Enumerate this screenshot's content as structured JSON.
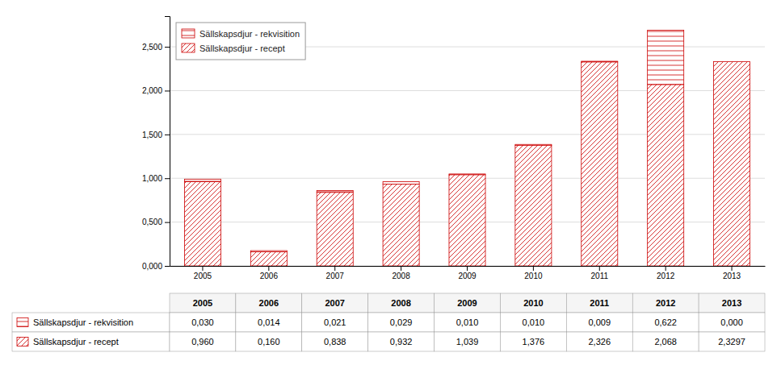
{
  "chart_data": {
    "type": "bar",
    "stacked": true,
    "categories": [
      "2005",
      "2006",
      "2007",
      "2008",
      "2009",
      "2010",
      "2011",
      "2012",
      "2013"
    ],
    "series": [
      {
        "name": "Sällskapsdjur - rekvisition",
        "color": "#cc0000",
        "values": [
          0.03,
          0.014,
          0.021,
          0.029,
          0.01,
          0.01,
          0.009,
          0.622,
          0.0
        ],
        "value_labels": [
          "0,030",
          "0,014",
          "0,021",
          "0,029",
          "0,010",
          "0,010",
          "0,009",
          "0,622",
          "0,000"
        ]
      },
      {
        "name": "Sällskapsdjur - recept",
        "color": "#cc0000",
        "values": [
          0.96,
          0.16,
          0.838,
          0.932,
          1.039,
          1.376,
          2.326,
          2.068,
          2.3297
        ],
        "value_labels": [
          "0,960",
          "0,160",
          "0,838",
          "0,932",
          "1,039",
          "1,376",
          "2,326",
          "2,068",
          "2,3297"
        ]
      }
    ],
    "ylim": [
      0,
      2.85
    ],
    "yticks": [
      {
        "value": 0.0,
        "label": "0,000"
      },
      {
        "value": 0.5,
        "label": "0,500"
      },
      {
        "value": 1.0,
        "label": "1,000"
      },
      {
        "value": 1.5,
        "label": "1,500"
      },
      {
        "value": 2.0,
        "label": "2,000"
      },
      {
        "value": 2.5,
        "label": "2,500"
      }
    ],
    "grid": true,
    "legend": "upper left"
  }
}
